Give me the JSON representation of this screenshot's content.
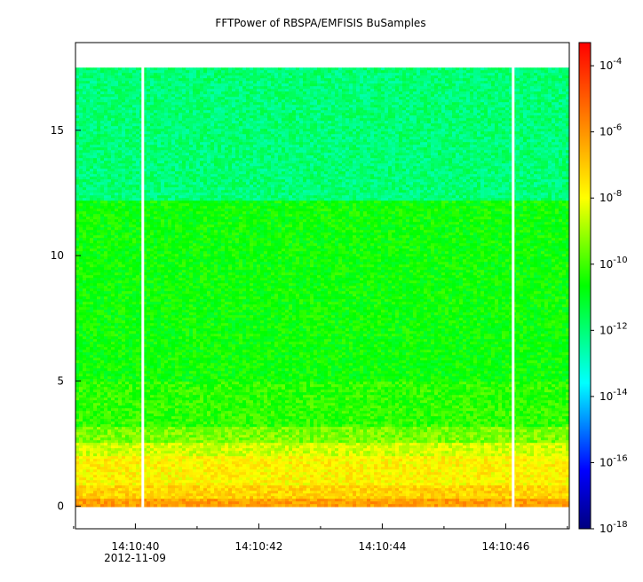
{
  "chart_data": {
    "type": "heatmap",
    "title": "FFTPower of RBSPA/EMFISIS  BuSamples",
    "xlabel": "",
    "ylabel": "",
    "x_ticks": [
      {
        "label": "14:10:40",
        "t": 40
      },
      {
        "label": "14:10:42",
        "t": 42
      },
      {
        "label": "14:10:44",
        "t": 44
      },
      {
        "label": "14:10:46",
        "t": 46
      }
    ],
    "x_date_label": "2012-11-09",
    "x_minor_ticks": [
      39,
      41,
      43,
      45,
      47
    ],
    "xlim": [
      39.03,
      47.03
    ],
    "y_ticks": [
      0,
      5,
      10,
      15
    ],
    "ylim": [
      -0.9,
      18.5
    ],
    "data_y_range": [
      0,
      17.5
    ],
    "gaps_t": [
      40.12,
      46.12
    ],
    "colorbar": {
      "scale": "log",
      "range_exponent": [
        -18,
        -3.3
      ],
      "tick_exponents": [
        -4,
        -6,
        -8,
        -10,
        -12,
        -14,
        -16,
        -18
      ],
      "tick_base": "10"
    },
    "bands": [
      {
        "y_from": 0,
        "y_to": 0.3,
        "exp": -6.2
      },
      {
        "y_from": 0.3,
        "y_to": 0.8,
        "exp": -7.2
      },
      {
        "y_from": 0.8,
        "y_to": 2.0,
        "exp": -7.8
      },
      {
        "y_from": 2.0,
        "y_to": 2.5,
        "exp": -8.5
      },
      {
        "y_from": 2.5,
        "y_to": 3.2,
        "exp": -9.4
      },
      {
        "y_from": 3.2,
        "y_to": 5.0,
        "exp": -10.2
      },
      {
        "y_from": 5.0,
        "y_to": 12.2,
        "exp": -10.6
      },
      {
        "y_from": 12.2,
        "y_to": 17.5,
        "exp": -12.0
      }
    ]
  }
}
